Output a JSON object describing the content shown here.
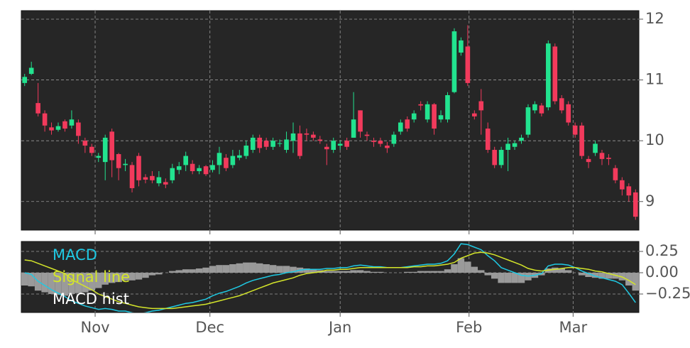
{
  "chart_data": [
    {
      "type": "candlestick",
      "up_color": "#22e38f",
      "down_color": "#f23a5c",
      "ylim": [
        8.53,
        12.14
      ],
      "yticks": [
        9,
        10,
        11,
        12
      ],
      "grid": true,
      "open": [
        10.95,
        11.1,
        10.62,
        10.45,
        10.22,
        10.18,
        10.32,
        10.25,
        10.3,
        10.0,
        9.9,
        9.72,
        9.65,
        10.15,
        9.78,
        9.6,
        9.6,
        9.75,
        9.4,
        9.42,
        9.3,
        9.32,
        9.35,
        9.52,
        9.6,
        9.62,
        9.5,
        9.58,
        9.52,
        9.6,
        9.72,
        9.6,
        9.72,
        9.75,
        9.85,
        10.05,
        10.0,
        9.9,
        9.95,
        9.85,
        10.0,
        10.12,
        10.12,
        10.1,
        10.02,
        9.9,
        9.85,
        9.92,
        10.0,
        10.05,
        10.5,
        10.1,
        10.0,
        10.0,
        9.92,
        9.95,
        10.15,
        10.35,
        10.35,
        10.6,
        10.35,
        10.6,
        10.35,
        10.35,
        10.8,
        11.45,
        11.55,
        10.45,
        10.65,
        10.2,
        9.85,
        9.6,
        9.85,
        9.9,
        10.0,
        10.1,
        10.5,
        10.58,
        10.55,
        11.55,
        10.7,
        10.6,
        10.25,
        10.25,
        9.7,
        9.8,
        9.8,
        9.72,
        9.55,
        9.35,
        9.25,
        9.15
      ],
      "high": [
        11.1,
        11.3,
        10.95,
        10.5,
        10.3,
        10.3,
        10.35,
        10.5,
        10.35,
        10.05,
        9.95,
        9.8,
        10.1,
        10.2,
        9.8,
        9.7,
        9.65,
        9.8,
        9.45,
        9.5,
        9.5,
        9.38,
        9.62,
        9.65,
        9.82,
        9.68,
        9.6,
        9.6,
        9.68,
        9.9,
        9.78,
        9.85,
        9.85,
        10.0,
        10.1,
        10.1,
        10.05,
        10.05,
        10.02,
        10.15,
        10.3,
        10.25,
        10.2,
        10.15,
        10.08,
        9.95,
        10.05,
        10.0,
        10.05,
        10.8,
        10.5,
        10.15,
        10.05,
        10.05,
        9.98,
        10.15,
        10.35,
        10.4,
        10.5,
        10.65,
        10.65,
        10.62,
        10.5,
        10.8,
        11.85,
        11.7,
        11.9,
        10.5,
        10.85,
        10.3,
        9.9,
        9.9,
        10.05,
        10.0,
        10.1,
        10.6,
        10.65,
        10.62,
        11.65,
        11.6,
        10.75,
        10.65,
        10.3,
        10.3,
        9.75,
        10.0,
        9.85,
        9.78,
        9.6,
        9.4,
        9.3,
        9.2
      ],
      "low": [
        10.9,
        11.08,
        10.4,
        10.15,
        10.1,
        10.15,
        10.15,
        10.2,
        9.95,
        9.8,
        9.75,
        9.65,
        9.35,
        9.4,
        9.35,
        9.5,
        9.15,
        9.25,
        9.3,
        9.3,
        9.25,
        9.22,
        9.3,
        9.45,
        9.5,
        9.45,
        9.45,
        9.42,
        9.48,
        9.45,
        9.5,
        9.55,
        9.68,
        9.7,
        9.8,
        9.8,
        9.85,
        9.85,
        9.9,
        9.8,
        9.8,
        9.7,
        10.0,
        10.0,
        9.95,
        9.6,
        9.8,
        9.85,
        9.85,
        10.05,
        10.05,
        10.0,
        9.9,
        9.9,
        9.8,
        9.9,
        10.1,
        10.15,
        10.3,
        10.5,
        10.3,
        10.1,
        10.3,
        10.3,
        10.78,
        11.4,
        10.9,
        10.35,
        10.1,
        9.8,
        9.55,
        9.55,
        9.5,
        9.85,
        9.95,
        10.05,
        10.45,
        10.4,
        10.5,
        10.6,
        10.45,
        10.25,
        10.05,
        9.7,
        9.55,
        9.75,
        9.6,
        9.6,
        9.3,
        9.1,
        9.0,
        8.7
      ],
      "close": [
        11.05,
        11.2,
        10.45,
        10.25,
        10.17,
        10.24,
        10.2,
        10.35,
        10.08,
        9.92,
        9.8,
        9.75,
        10.05,
        9.68,
        9.55,
        9.62,
        9.22,
        9.35,
        9.36,
        9.35,
        9.4,
        9.28,
        9.55,
        9.58,
        9.75,
        9.5,
        9.55,
        9.45,
        9.6,
        9.8,
        9.55,
        9.75,
        9.76,
        9.92,
        10.05,
        9.88,
        9.9,
        10.0,
        9.96,
        10.02,
        10.12,
        9.75,
        10.1,
        10.05,
        10.0,
        9.86,
        10.0,
        9.95,
        9.9,
        10.35,
        10.15,
        10.08,
        9.98,
        9.95,
        9.88,
        10.1,
        10.3,
        10.2,
        10.45,
        10.58,
        10.6,
        10.2,
        10.42,
        10.75,
        11.8,
        11.65,
        10.95,
        10.4,
        10.5,
        9.85,
        9.6,
        9.85,
        9.95,
        9.96,
        10.05,
        10.55,
        10.6,
        10.45,
        11.6,
        10.65,
        10.5,
        10.3,
        10.1,
        9.75,
        9.65,
        9.95,
        9.7,
        9.7,
        9.35,
        9.2,
        9.1,
        8.75
      ]
    },
    {
      "type": "macd",
      "ylim": [
        -0.467,
        0.367
      ],
      "yticks": [
        {
          "value": 0.25,
          "label": "0.25"
        },
        {
          "value": 0,
          "label": "0.00"
        },
        {
          "value": -0.25,
          "label": "−0.25"
        }
      ],
      "xlim": [
        -0.5,
        91.5
      ],
      "xticks": [
        {
          "value": 10.5,
          "label": "Nov"
        },
        {
          "value": 27.6,
          "label": "Dec"
        },
        {
          "value": 47,
          "label": "Jan"
        },
        {
          "value": 66.2,
          "label": "Feb"
        },
        {
          "value": 81.7,
          "label": "Mar"
        }
      ],
      "grid": true,
      "legend": "upper left",
      "series": [
        {
          "name": "MACD",
          "type": "line",
          "color": "#1fc9e3",
          "values": [
            0.0,
            -0.02,
            -0.1,
            -0.15,
            -0.2,
            -0.24,
            -0.28,
            -0.33,
            -0.36,
            -0.39,
            -0.41,
            -0.43,
            -0.42,
            -0.43,
            -0.45,
            -0.45,
            -0.47,
            -0.48,
            -0.47,
            -0.45,
            -0.44,
            -0.42,
            -0.4,
            -0.38,
            -0.36,
            -0.35,
            -0.33,
            -0.31,
            -0.27,
            -0.24,
            -0.22,
            -0.19,
            -0.16,
            -0.12,
            -0.09,
            -0.07,
            -0.05,
            -0.03,
            -0.02,
            0.0,
            0.01,
            0.03,
            0.04,
            0.04,
            0.04,
            0.05,
            0.05,
            0.06,
            0.06,
            0.08,
            0.09,
            0.08,
            0.07,
            0.07,
            0.06,
            0.06,
            0.06,
            0.07,
            0.08,
            0.09,
            0.1,
            0.1,
            0.11,
            0.14,
            0.22,
            0.34,
            0.33,
            0.3,
            0.27,
            0.2,
            0.14,
            0.06,
            0.03,
            0.0,
            -0.03,
            -0.04,
            -0.03,
            -0.01,
            0.08,
            0.1,
            0.1,
            0.09,
            0.06,
            0.02,
            -0.01,
            -0.04,
            -0.06,
            -0.08,
            -0.1,
            -0.14,
            -0.24,
            -0.35
          ]
        },
        {
          "name": "Signal line",
          "type": "line",
          "color": "#d4e52a",
          "values": [
            0.15,
            0.14,
            0.11,
            0.08,
            0.05,
            0.02,
            -0.01,
            -0.08,
            -0.12,
            -0.16,
            -0.2,
            -0.25,
            -0.28,
            -0.31,
            -0.34,
            -0.36,
            -0.38,
            -0.4,
            -0.41,
            -0.42,
            -0.42,
            -0.42,
            -0.42,
            -0.41,
            -0.4,
            -0.39,
            -0.38,
            -0.37,
            -0.35,
            -0.33,
            -0.31,
            -0.29,
            -0.27,
            -0.24,
            -0.21,
            -0.18,
            -0.15,
            -0.12,
            -0.1,
            -0.08,
            -0.06,
            -0.03,
            -0.01,
            0.0,
            0.01,
            0.03,
            0.03,
            0.04,
            0.04,
            0.05,
            0.06,
            0.06,
            0.06,
            0.06,
            0.06,
            0.06,
            0.06,
            0.06,
            0.07,
            0.07,
            0.08,
            0.08,
            0.09,
            0.1,
            0.12,
            0.17,
            0.2,
            0.23,
            0.24,
            0.23,
            0.21,
            0.18,
            0.15,
            0.12,
            0.09,
            0.05,
            0.03,
            0.02,
            0.03,
            0.04,
            0.05,
            0.06,
            0.06,
            0.05,
            0.04,
            0.02,
            0.01,
            -0.01,
            -0.03,
            -0.05,
            -0.09,
            -0.14
          ]
        },
        {
          "name": "MACD hist",
          "type": "bar",
          "color": "#9a9a9a",
          "values": [
            -0.15,
            -0.16,
            -0.21,
            -0.23,
            -0.25,
            -0.26,
            -0.27,
            -0.25,
            -0.24,
            -0.23,
            -0.21,
            -0.18,
            -0.14,
            -0.12,
            -0.11,
            -0.09,
            -0.09,
            -0.08,
            -0.06,
            -0.03,
            -0.02,
            0.0,
            0.02,
            0.03,
            0.04,
            0.04,
            0.05,
            0.06,
            0.08,
            0.09,
            0.09,
            0.1,
            0.11,
            0.12,
            0.12,
            0.11,
            0.1,
            0.09,
            0.08,
            0.08,
            0.07,
            0.06,
            0.05,
            0.04,
            0.03,
            0.02,
            0.02,
            0.02,
            0.02,
            0.03,
            0.03,
            0.02,
            0.01,
            0.01,
            0.0,
            0.0,
            0.0,
            0.01,
            0.01,
            0.02,
            0.02,
            0.02,
            0.02,
            0.04,
            0.1,
            0.17,
            0.13,
            0.07,
            0.03,
            -0.03,
            -0.07,
            -0.12,
            -0.12,
            -0.12,
            -0.12,
            -0.09,
            -0.06,
            -0.03,
            0.05,
            0.06,
            0.05,
            0.03,
            0.0,
            -0.03,
            -0.05,
            -0.06,
            -0.07,
            -0.07,
            -0.07,
            -0.09,
            -0.15,
            -0.21
          ]
        }
      ]
    }
  ]
}
